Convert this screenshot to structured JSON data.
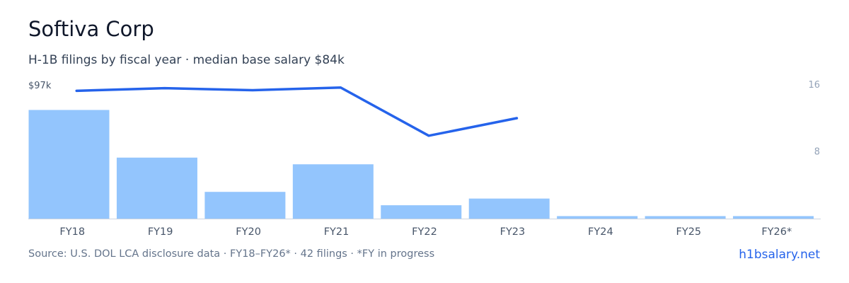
{
  "header": {
    "title": "Softiva Corp",
    "subtitle": "H-1B filings by fiscal year · median base salary $84k"
  },
  "footer": {
    "source": "Source: U.S. DOL LCA disclosure data · FY18–FY26* · 42 filings · *FY in progress",
    "link": "h1bsalary.net"
  },
  "colors": {
    "bar": "#93c5fd",
    "line": "#2563eb",
    "axis": "#cbd5e1",
    "tick_text": "#475569",
    "right_tick_text": "#94a3b8"
  },
  "chart_data": {
    "type": "bar",
    "categories": [
      "FY18",
      "FY19",
      "FY20",
      "FY21",
      "FY22",
      "FY23",
      "FY24",
      "FY25",
      "FY26*"
    ],
    "series": [
      {
        "type": "bar",
        "axis": "right",
        "values": [
          13,
          7.3,
          3.2,
          6.5,
          1.6,
          2.4,
          0.3,
          0.3,
          0.3
        ]
      },
      {
        "type": "line",
        "axis": "left",
        "values": [
          96.2,
          96.6,
          96.3,
          96.7,
          89.3,
          92.0,
          null,
          null,
          null
        ]
      }
    ],
    "y_left": {
      "tick_labels": [
        "$97k"
      ],
      "ticks": [
        97
      ]
    },
    "y_right": {
      "tick_labels": [
        "16",
        "8"
      ],
      "ticks": [
        16,
        8
      ],
      "ylim": [
        0,
        16
      ]
    },
    "grid": false,
    "legend": "none"
  }
}
